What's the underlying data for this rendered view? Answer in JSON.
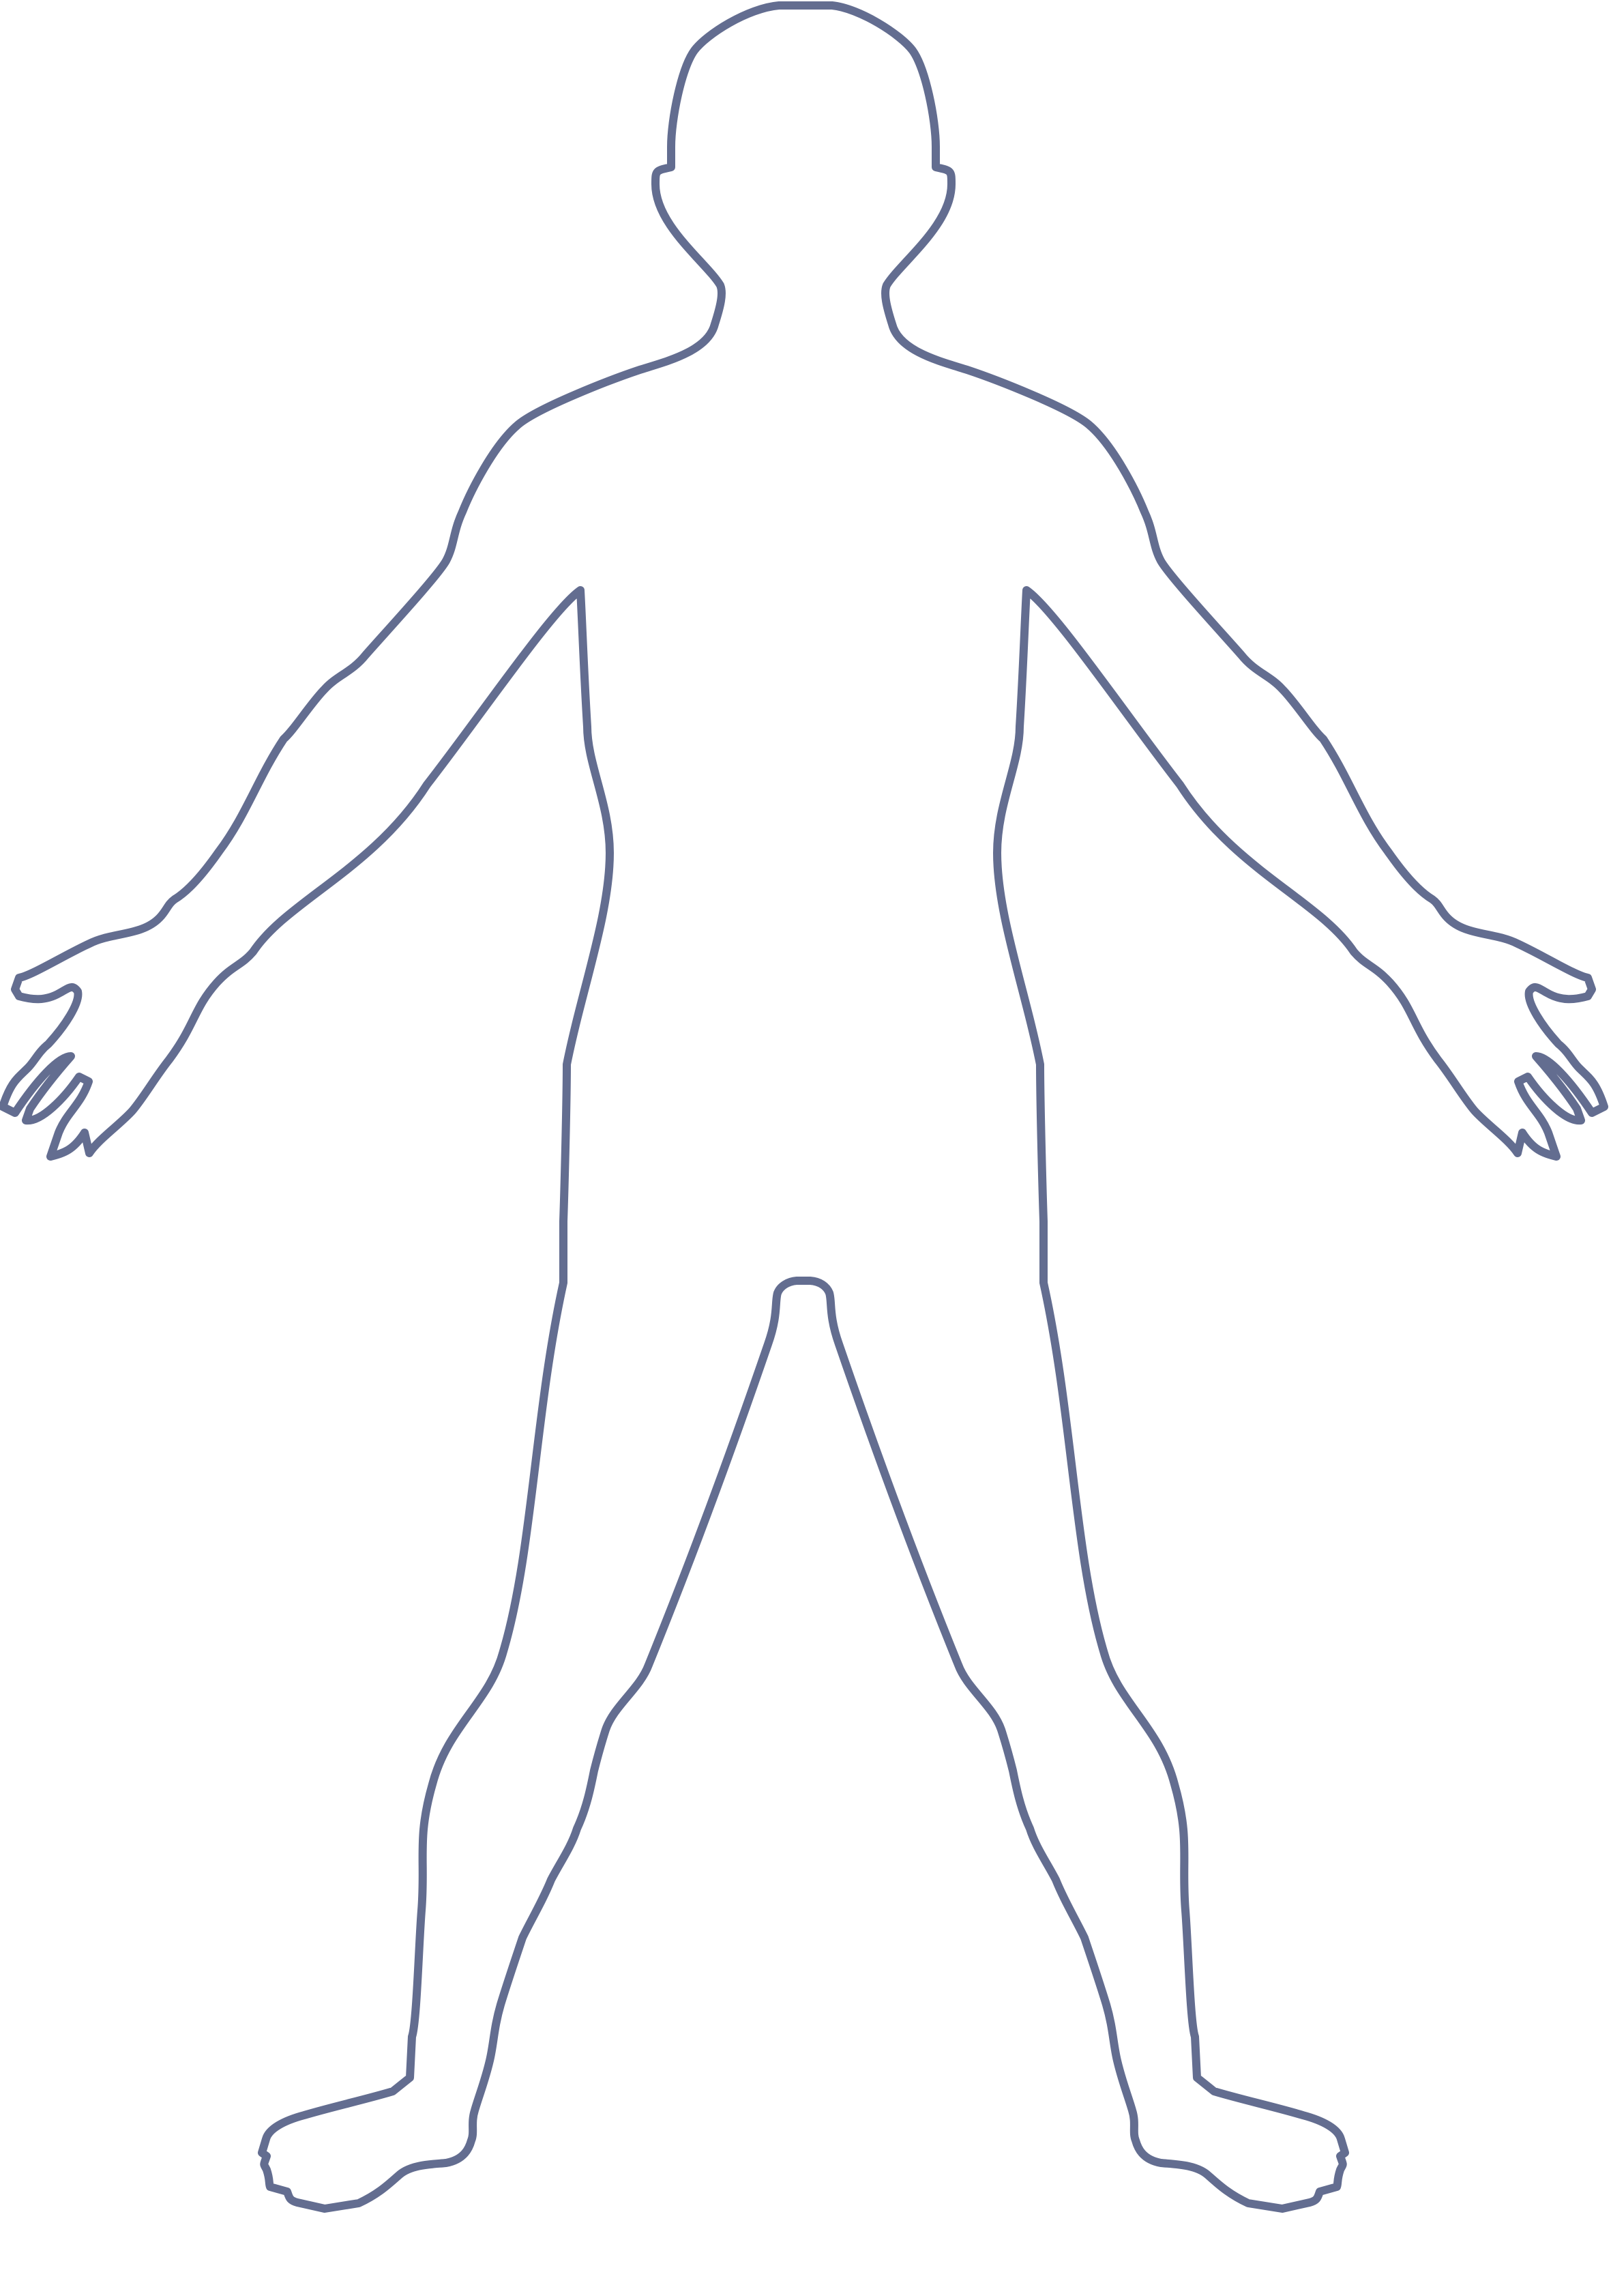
{
  "figure": {
    "subject": "human-body-outline-front",
    "stroke_color": "#636d90",
    "background_color": "#ffffff"
  }
}
